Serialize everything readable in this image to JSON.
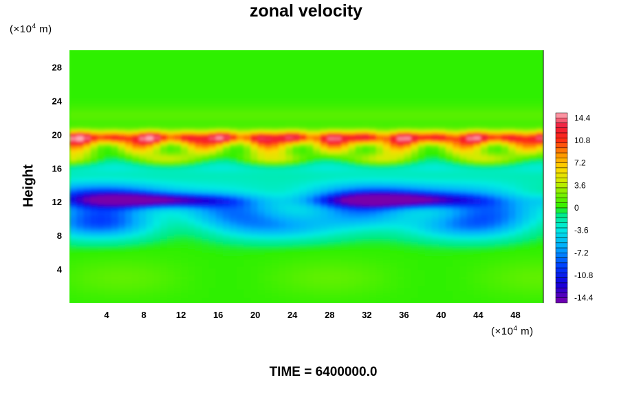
{
  "chart_data": {
    "type": "heatmap",
    "title": "zonal velocity",
    "ylabel": "Height",
    "xlabel": "",
    "x_unit_prefix": "(×10",
    "x_unit_exp": "4",
    "x_unit_suffix": " m)",
    "y_unit_prefix": "(×10",
    "y_unit_exp": "4",
    "y_unit_suffix": " m)",
    "footer": "TIME = 6400000.0",
    "xlim": [
      0,
      51
    ],
    "ylim": [
      0,
      30
    ],
    "x_ticks": [
      4,
      8,
      12,
      16,
      20,
      24,
      28,
      32,
      36,
      40,
      44,
      48
    ],
    "y_ticks": [
      4,
      8,
      12,
      16,
      20,
      24,
      28
    ],
    "colorbar": {
      "range": [
        -15.2,
        15.2
      ],
      "ticks": [
        "14.4",
        "10.8",
        "7.2",
        "3.6",
        "0",
        "-3.6",
        "-7.2",
        "-10.8",
        "-14.4"
      ],
      "levels": 38
    },
    "features": [
      {
        "description": "strong positive jet",
        "height": 19.7,
        "x_range": [
          0,
          51
        ],
        "peak_value": 14.5
      },
      {
        "description": "positive band",
        "height": 17.0,
        "x_range": [
          0,
          51
        ],
        "peak_value": 7.0
      },
      {
        "description": "negative jet",
        "height": 12.2,
        "x_range": [
          0,
          51
        ],
        "peak_value": -11.5
      }
    ]
  }
}
